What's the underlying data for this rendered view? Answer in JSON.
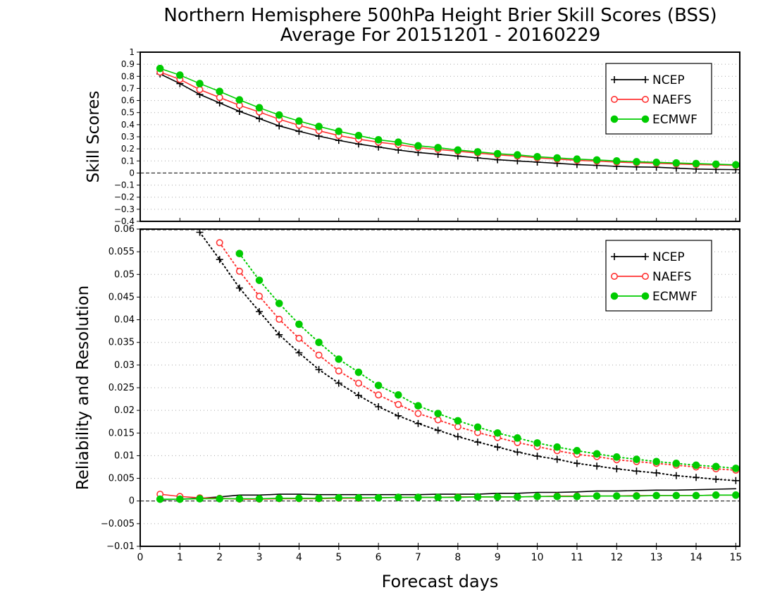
{
  "page": {
    "title_line1": "Northern Hemisphere 500hPa Height Brier Skill Scores (BSS)",
    "title_line2": "Average For 20151201 - 20160229"
  },
  "chart_data": [
    {
      "type": "line",
      "panel": "top",
      "ylabel": "Skill Scores",
      "xlabel": "",
      "xlim": [
        0,
        15.1
      ],
      "ylim": [
        -0.4,
        1
      ],
      "yticks": [
        "−0.4",
        "−0.3",
        "−0.2",
        "−0.1",
        "0",
        "0.1",
        "0.2",
        "0.3",
        "0.4",
        "0.5",
        "0.6",
        "0.7",
        "0.8",
        "0.9",
        "1"
      ],
      "grid": true,
      "legend_position": "top-right",
      "x": [
        0.5,
        1,
        1.5,
        2,
        2.5,
        3,
        3.5,
        4,
        4.5,
        5,
        5.5,
        6,
        6.5,
        7,
        7.5,
        8,
        8.5,
        9,
        9.5,
        10,
        10.5,
        11,
        11.5,
        12,
        12.5,
        13,
        13.5,
        14,
        14.5,
        15
      ],
      "series": [
        {
          "name": "NCEP",
          "color": "#000000",
          "marker": "plus",
          "values": [
            0.82,
            0.74,
            0.65,
            0.58,
            0.51,
            0.45,
            0.39,
            0.345,
            0.305,
            0.27,
            0.24,
            0.215,
            0.19,
            0.17,
            0.155,
            0.14,
            0.125,
            0.11,
            0.1,
            0.09,
            0.08,
            0.07,
            0.063,
            0.055,
            0.05,
            0.048,
            0.04,
            0.033,
            0.03,
            0.028
          ]
        },
        {
          "name": "NAEFS",
          "color": "#ff3333",
          "marker": "circle-open",
          "values": [
            0.835,
            0.775,
            0.69,
            0.625,
            0.56,
            0.505,
            0.445,
            0.395,
            0.35,
            0.31,
            0.28,
            0.255,
            0.235,
            0.21,
            0.195,
            0.18,
            0.165,
            0.15,
            0.14,
            0.125,
            0.115,
            0.105,
            0.098,
            0.09,
            0.085,
            0.08,
            0.075,
            0.07,
            0.067,
            0.063
          ]
        },
        {
          "name": "ECMWF",
          "color": "#00cc00",
          "marker": "circle-filled",
          "values": [
            0.865,
            0.81,
            0.74,
            0.675,
            0.605,
            0.54,
            0.48,
            0.43,
            0.385,
            0.345,
            0.31,
            0.275,
            0.255,
            0.225,
            0.21,
            0.19,
            0.175,
            0.16,
            0.15,
            0.135,
            0.125,
            0.115,
            0.108,
            0.1,
            0.093,
            0.088,
            0.083,
            0.078,
            0.073,
            0.068
          ]
        }
      ]
    },
    {
      "type": "line",
      "panel": "bottom",
      "ylabel": "Reliability and Resolution",
      "xlabel": "Forecast days",
      "xlim": [
        0,
        15.1
      ],
      "ylim": [
        -0.01,
        0.06
      ],
      "xticks": [
        "0",
        "1",
        "2",
        "3",
        "4",
        "5",
        "6",
        "7",
        "8",
        "9",
        "10",
        "11",
        "12",
        "13",
        "14",
        "15"
      ],
      "yticks": [
        "−0.01",
        "−0.005",
        "0",
        "0.005",
        "0.01",
        "0.015",
        "0.02",
        "0.025",
        "0.03",
        "0.035",
        "0.04",
        "0.045",
        "0.05",
        "0.055",
        "0.06"
      ],
      "grid": true,
      "legend_position": "top-right",
      "x": [
        0.5,
        1,
        1.5,
        2,
        2.5,
        3,
        3.5,
        4,
        4.5,
        5,
        5.5,
        6,
        6.5,
        7,
        7.5,
        8,
        8.5,
        9,
        9.5,
        10,
        10.5,
        11,
        11.5,
        12,
        12.5,
        13,
        13.5,
        14,
        14.5,
        15
      ],
      "series": [
        {
          "name": "NCEP",
          "color": "#000000",
          "marker": "plus",
          "line": "dotted",
          "component": "resolution",
          "values": [
            null,
            null,
            0.0593,
            0.0533,
            0.047,
            0.0418,
            0.0367,
            0.0327,
            0.029,
            0.026,
            0.0233,
            0.0208,
            0.0188,
            0.0171,
            0.0156,
            0.0142,
            0.013,
            0.0119,
            0.0108,
            0.0099,
            0.0092,
            0.0083,
            0.0077,
            0.0071,
            0.0066,
            0.0062,
            0.0056,
            0.0052,
            0.0048,
            0.0045
          ]
        },
        {
          "name": "NAEFS",
          "color": "#ff3333",
          "marker": "circle-open",
          "line": "dotted",
          "component": "resolution",
          "values": [
            null,
            null,
            null,
            0.057,
            0.0507,
            0.0452,
            0.0401,
            0.0359,
            0.0322,
            0.0287,
            0.026,
            0.0234,
            0.0213,
            0.0193,
            0.0179,
            0.0164,
            0.0151,
            0.014,
            0.0129,
            0.012,
            0.0111,
            0.0103,
            0.0098,
            0.0091,
            0.0087,
            0.0083,
            0.0079,
            0.0075,
            0.0071,
            0.0068
          ]
        },
        {
          "name": "ECMWF",
          "color": "#00cc00",
          "marker": "circle-filled",
          "line": "dotted",
          "component": "resolution",
          "values": [
            null,
            null,
            null,
            null,
            0.0546,
            0.0487,
            0.0436,
            0.039,
            0.035,
            0.0313,
            0.0284,
            0.0255,
            0.0234,
            0.021,
            0.0193,
            0.0177,
            0.0163,
            0.015,
            0.0139,
            0.0128,
            0.0119,
            0.0111,
            0.0104,
            0.0097,
            0.0092,
            0.0087,
            0.0083,
            0.0079,
            0.0076,
            0.0072
          ]
        },
        {
          "name": "NCEP",
          "color": "#000000",
          "marker": "none",
          "line": "solid",
          "component": "reliability",
          "values": [
            0.0003,
            0.0004,
            0.0006,
            0.0009,
            0.0013,
            0.0013,
            0.0015,
            0.0015,
            0.0014,
            0.0014,
            0.0014,
            0.0014,
            0.0014,
            0.0014,
            0.0015,
            0.0015,
            0.0015,
            0.0017,
            0.0017,
            0.0019,
            0.0019,
            0.002,
            0.0022,
            0.0022,
            0.0023,
            0.0024,
            0.0024,
            0.0025,
            0.0026,
            0.0027
          ]
        },
        {
          "name": "NAEFS",
          "color": "#ff3333",
          "marker": "circle-open",
          "line": "solid",
          "component": "reliability",
          "values": [
            0.0015,
            0.001,
            0.0007,
            0.0006,
            0.0004,
            0.0004,
            0.0005,
            0.0005,
            0.0005,
            0.0006,
            0.0006,
            0.0007,
            0.0008,
            0.0008,
            0.0008,
            0.0009,
            0.0009,
            0.0009,
            0.0009,
            0.001,
            0.0011,
            0.0011,
            0.0011,
            0.0011,
            0.0012,
            0.0012,
            0.0012,
            0.0012,
            0.0013,
            0.0013
          ]
        },
        {
          "name": "ECMWF",
          "color": "#00cc00",
          "marker": "circle-filled",
          "line": "solid",
          "component": "reliability",
          "values": [
            0.0004,
            0.0004,
            0.0005,
            0.0005,
            0.0005,
            0.0005,
            0.0006,
            0.0006,
            0.0006,
            0.0007,
            0.0007,
            0.0007,
            0.0008,
            0.0008,
            0.0008,
            0.0008,
            0.0009,
            0.0009,
            0.0009,
            0.001,
            0.001,
            0.001,
            0.0011,
            0.0011,
            0.0011,
            0.0012,
            0.0012,
            0.0012,
            0.0013,
            0.0013
          ]
        }
      ]
    }
  ],
  "legend": [
    {
      "name": "NCEP",
      "color": "#000000",
      "marker": "plus"
    },
    {
      "name": "NAEFS",
      "color": "#ff3333",
      "marker": "circle-open"
    },
    {
      "name": "ECMWF",
      "color": "#00cc00",
      "marker": "circle-filled"
    }
  ]
}
